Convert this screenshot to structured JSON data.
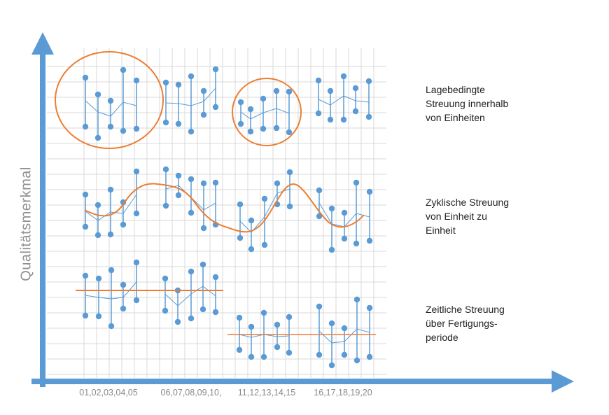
{
  "y_axis_label": "Qualitätsmerkmal",
  "x_labels": [
    "01,02,03,04,05",
    "06,07,08,09,10,",
    "11,12,13,14,15",
    "16,17,18,19,20"
  ],
  "descriptions": [
    {
      "lines": [
        "Lagebedingte",
        "Streuung innerhalb",
        "von Einheiten"
      ]
    },
    {
      "lines": [
        "Zyklische Streuung",
        "von Einheit zu",
        "Einheit"
      ]
    },
    {
      "lines": [
        "Zeitliche Streuung",
        "über Fertigungs-",
        "periode"
      ]
    }
  ],
  "colors": {
    "axis": "#5b9bd5",
    "points": "#5b9bd5",
    "line": "#5b9bd5",
    "highlight": "#ed7d31",
    "grid": "#d9d9d9"
  }
}
